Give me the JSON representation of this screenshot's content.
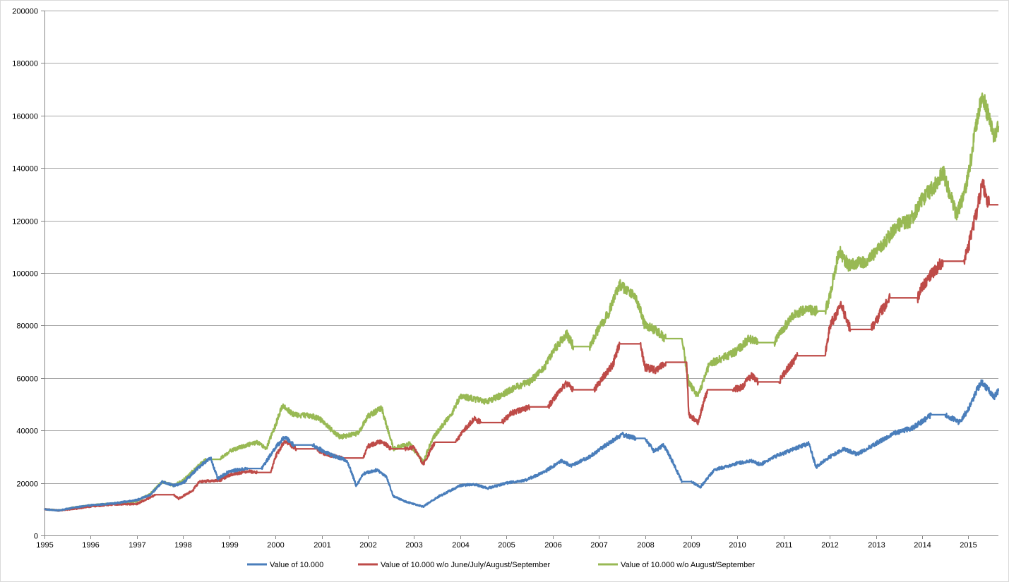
{
  "chart_data": {
    "type": "line",
    "title": "",
    "xlabel": "",
    "ylabel": "",
    "xlim": [
      1995,
      2015.65
    ],
    "ylim": [
      0,
      200000
    ],
    "grid": true,
    "legend_position": "bottom",
    "x_ticks": [
      "1995",
      "1996",
      "1997",
      "1998",
      "1999",
      "2000",
      "2001",
      "2002",
      "2003",
      "2004",
      "2005",
      "2006",
      "2007",
      "2008",
      "2009",
      "2010",
      "2011",
      "2012",
      "2013",
      "2014",
      "2015"
    ],
    "y_ticks": [
      "0",
      "20000",
      "40000",
      "60000",
      "80000",
      "100000",
      "120000",
      "140000",
      "160000",
      "180000",
      "200000"
    ],
    "series": [
      {
        "name": "Value of 10.000",
        "color": "#4a7ebb",
        "points": [
          [
            1995.0,
            10000
          ],
          [
            1995.3,
            9500
          ],
          [
            1995.6,
            10500
          ],
          [
            1996.0,
            11500
          ],
          [
            1996.5,
            12200
          ],
          [
            1997.0,
            13500
          ],
          [
            1997.3,
            15500
          ],
          [
            1997.55,
            20500
          ],
          [
            1997.8,
            19000
          ],
          [
            1998.0,
            20000
          ],
          [
            1998.4,
            27000
          ],
          [
            1998.6,
            29500
          ],
          [
            1998.75,
            21500
          ],
          [
            1999.0,
            24500
          ],
          [
            1999.4,
            25500
          ],
          [
            1999.7,
            25500
          ],
          [
            2000.0,
            33500
          ],
          [
            2000.2,
            37500
          ],
          [
            2000.4,
            34500
          ],
          [
            2000.8,
            34500
          ],
          [
            2001.0,
            32500
          ],
          [
            2001.3,
            30000
          ],
          [
            2001.55,
            28500
          ],
          [
            2001.75,
            19000
          ],
          [
            2001.9,
            23500
          ],
          [
            2002.2,
            25000
          ],
          [
            2002.4,
            22500
          ],
          [
            2002.55,
            15000
          ],
          [
            2002.8,
            13000
          ],
          [
            2003.2,
            11000
          ],
          [
            2003.5,
            14500
          ],
          [
            2004.0,
            19000
          ],
          [
            2004.3,
            19500
          ],
          [
            2004.6,
            18000
          ],
          [
            2005.0,
            20000
          ],
          [
            2005.4,
            21000
          ],
          [
            2005.8,
            24000
          ],
          [
            2006.2,
            28500
          ],
          [
            2006.4,
            26500
          ],
          [
            2006.8,
            30000
          ],
          [
            2007.2,
            35000
          ],
          [
            2007.5,
            38500
          ],
          [
            2007.8,
            37000
          ],
          [
            2008.0,
            37000
          ],
          [
            2008.2,
            32000
          ],
          [
            2008.4,
            34500
          ],
          [
            2008.6,
            28000
          ],
          [
            2008.8,
            20500
          ],
          [
            2009.0,
            20500
          ],
          [
            2009.2,
            18500
          ],
          [
            2009.5,
            25000
          ],
          [
            2010.0,
            27500
          ],
          [
            2010.3,
            28500
          ],
          [
            2010.5,
            27000
          ],
          [
            2010.8,
            30000
          ],
          [
            2011.3,
            33500
          ],
          [
            2011.55,
            35000
          ],
          [
            2011.7,
            26000
          ],
          [
            2012.0,
            30000
          ],
          [
            2012.3,
            33000
          ],
          [
            2012.6,
            31000
          ],
          [
            2013.0,
            35000
          ],
          [
            2013.4,
            39000
          ],
          [
            2013.8,
            41000
          ],
          [
            2014.2,
            46000
          ],
          [
            2014.5,
            46000
          ],
          [
            2014.8,
            43000
          ],
          [
            2015.0,
            48000
          ],
          [
            2015.2,
            56000
          ],
          [
            2015.3,
            58500
          ],
          [
            2015.45,
            55000
          ],
          [
            2015.55,
            52500
          ],
          [
            2015.65,
            55000
          ]
        ]
      },
      {
        "name": "Value of 10.000 w/o June/July/August/September",
        "color": "#be4b48",
        "points": [
          [
            1995.0,
            10000
          ],
          [
            1995.3,
            9500
          ],
          [
            1995.6,
            10000
          ],
          [
            1996.0,
            11000
          ],
          [
            1996.5,
            11800
          ],
          [
            1997.0,
            12000
          ],
          [
            1997.3,
            14500
          ],
          [
            1997.4,
            15500
          ],
          [
            1997.8,
            15500
          ],
          [
            1997.9,
            14000
          ],
          [
            1998.2,
            17000
          ],
          [
            1998.35,
            20500
          ],
          [
            1998.8,
            21000
          ],
          [
            1999.0,
            23000
          ],
          [
            1999.4,
            24500
          ],
          [
            1999.6,
            24000
          ],
          [
            1999.9,
            24000
          ],
          [
            2000.0,
            30000
          ],
          [
            2000.2,
            36000
          ],
          [
            2000.45,
            33000
          ],
          [
            2000.9,
            33000
          ],
          [
            2001.0,
            31500
          ],
          [
            2001.3,
            30000
          ],
          [
            2001.45,
            29500
          ],
          [
            2001.9,
            29500
          ],
          [
            2002.0,
            34000
          ],
          [
            2002.3,
            36000
          ],
          [
            2002.5,
            33000
          ],
          [
            2002.8,
            33000
          ],
          [
            2003.0,
            33500
          ],
          [
            2003.2,
            27000
          ],
          [
            2003.45,
            35500
          ],
          [
            2003.9,
            35500
          ],
          [
            2004.1,
            40500
          ],
          [
            2004.3,
            44500
          ],
          [
            2004.45,
            43000
          ],
          [
            2004.9,
            43000
          ],
          [
            2005.1,
            46500
          ],
          [
            2005.35,
            48000
          ],
          [
            2005.5,
            49000
          ],
          [
            2005.9,
            49000
          ],
          [
            2006.1,
            54000
          ],
          [
            2006.3,
            58000
          ],
          [
            2006.45,
            55500
          ],
          [
            2006.9,
            55500
          ],
          [
            2007.1,
            60500
          ],
          [
            2007.3,
            65000
          ],
          [
            2007.45,
            73000
          ],
          [
            2007.9,
            73000
          ],
          [
            2008.0,
            64000
          ],
          [
            2008.25,
            63000
          ],
          [
            2008.45,
            66000
          ],
          [
            2008.9,
            66000
          ],
          [
            2008.95,
            46000
          ],
          [
            2009.15,
            43000
          ],
          [
            2009.35,
            55500
          ],
          [
            2009.9,
            55500
          ],
          [
            2010.1,
            56500
          ],
          [
            2010.3,
            61000
          ],
          [
            2010.45,
            58500
          ],
          [
            2010.9,
            58500
          ],
          [
            2011.1,
            64000
          ],
          [
            2011.3,
            68500
          ],
          [
            2011.45,
            68500
          ],
          [
            2011.9,
            68500
          ],
          [
            2012.0,
            80000
          ],
          [
            2012.25,
            87500
          ],
          [
            2012.45,
            78500
          ],
          [
            2012.9,
            78500
          ],
          [
            2013.1,
            85000
          ],
          [
            2013.3,
            90500
          ],
          [
            2013.45,
            90500
          ],
          [
            2013.9,
            90500
          ],
          [
            2014.0,
            95000
          ],
          [
            2014.3,
            101500
          ],
          [
            2014.45,
            104500
          ],
          [
            2014.9,
            104500
          ],
          [
            2015.0,
            110000
          ],
          [
            2015.2,
            125000
          ],
          [
            2015.3,
            135000
          ],
          [
            2015.45,
            126000
          ],
          [
            2015.65,
            126000
          ]
        ]
      },
      {
        "name": "Value of 10.000 w/o August/September",
        "color": "#98b954",
        "points": [
          [
            1995.0,
            10000
          ],
          [
            1995.3,
            9500
          ],
          [
            1995.6,
            10500
          ],
          [
            1996.0,
            11500
          ],
          [
            1996.5,
            12200
          ],
          [
            1997.0,
            13000
          ],
          [
            1997.3,
            16000
          ],
          [
            1997.55,
            20500
          ],
          [
            1997.8,
            19000
          ],
          [
            1998.0,
            21000
          ],
          [
            1998.3,
            26000
          ],
          [
            1998.5,
            29000
          ],
          [
            1998.8,
            29000
          ],
          [
            1999.0,
            32000
          ],
          [
            1999.3,
            34000
          ],
          [
            1999.6,
            35500
          ],
          [
            1999.8,
            33000
          ],
          [
            2000.0,
            42000
          ],
          [
            2000.15,
            49500
          ],
          [
            2000.4,
            46000
          ],
          [
            2000.8,
            45500
          ],
          [
            2001.0,
            44000
          ],
          [
            2001.2,
            40500
          ],
          [
            2001.4,
            37500
          ],
          [
            2001.8,
            39000
          ],
          [
            2002.0,
            45500
          ],
          [
            2002.3,
            48500
          ],
          [
            2002.55,
            33000
          ],
          [
            2002.9,
            35000
          ],
          [
            2003.2,
            28000
          ],
          [
            2003.4,
            37000
          ],
          [
            2003.8,
            46000
          ],
          [
            2004.0,
            53000
          ],
          [
            2004.3,
            52000
          ],
          [
            2004.55,
            51000
          ],
          [
            2004.9,
            53500
          ],
          [
            2005.2,
            56500
          ],
          [
            2005.5,
            58500
          ],
          [
            2005.8,
            63500
          ],
          [
            2006.0,
            70000
          ],
          [
            2006.3,
            77000
          ],
          [
            2006.45,
            72000
          ],
          [
            2006.8,
            72000
          ],
          [
            2007.0,
            79000
          ],
          [
            2007.2,
            84500
          ],
          [
            2007.45,
            95500
          ],
          [
            2007.8,
            91000
          ],
          [
            2008.0,
            80000
          ],
          [
            2008.2,
            78500
          ],
          [
            2008.45,
            75000
          ],
          [
            2008.8,
            75000
          ],
          [
            2008.95,
            58000
          ],
          [
            2009.15,
            53000
          ],
          [
            2009.4,
            65500
          ],
          [
            2009.8,
            68500
          ],
          [
            2010.0,
            70500
          ],
          [
            2010.25,
            75000
          ],
          [
            2010.45,
            73500
          ],
          [
            2010.8,
            73500
          ],
          [
            2011.0,
            79000
          ],
          [
            2011.2,
            83500
          ],
          [
            2011.45,
            86000
          ],
          [
            2011.75,
            85500
          ],
          [
            2011.9,
            85500
          ],
          [
            2012.0,
            91000
          ],
          [
            2012.2,
            108500
          ],
          [
            2012.4,
            103000
          ],
          [
            2012.8,
            104500
          ],
          [
            2013.0,
            108000
          ],
          [
            2013.2,
            112000
          ],
          [
            2013.45,
            118000
          ],
          [
            2013.75,
            120000
          ],
          [
            2014.0,
            128000
          ],
          [
            2014.3,
            134000
          ],
          [
            2014.45,
            138500
          ],
          [
            2014.6,
            130000
          ],
          [
            2014.75,
            122000
          ],
          [
            2014.9,
            130000
          ],
          [
            2015.0,
            137000
          ],
          [
            2015.15,
            155000
          ],
          [
            2015.3,
            168500
          ],
          [
            2015.45,
            158500
          ],
          [
            2015.55,
            151500
          ],
          [
            2015.65,
            156000
          ]
        ]
      }
    ]
  }
}
